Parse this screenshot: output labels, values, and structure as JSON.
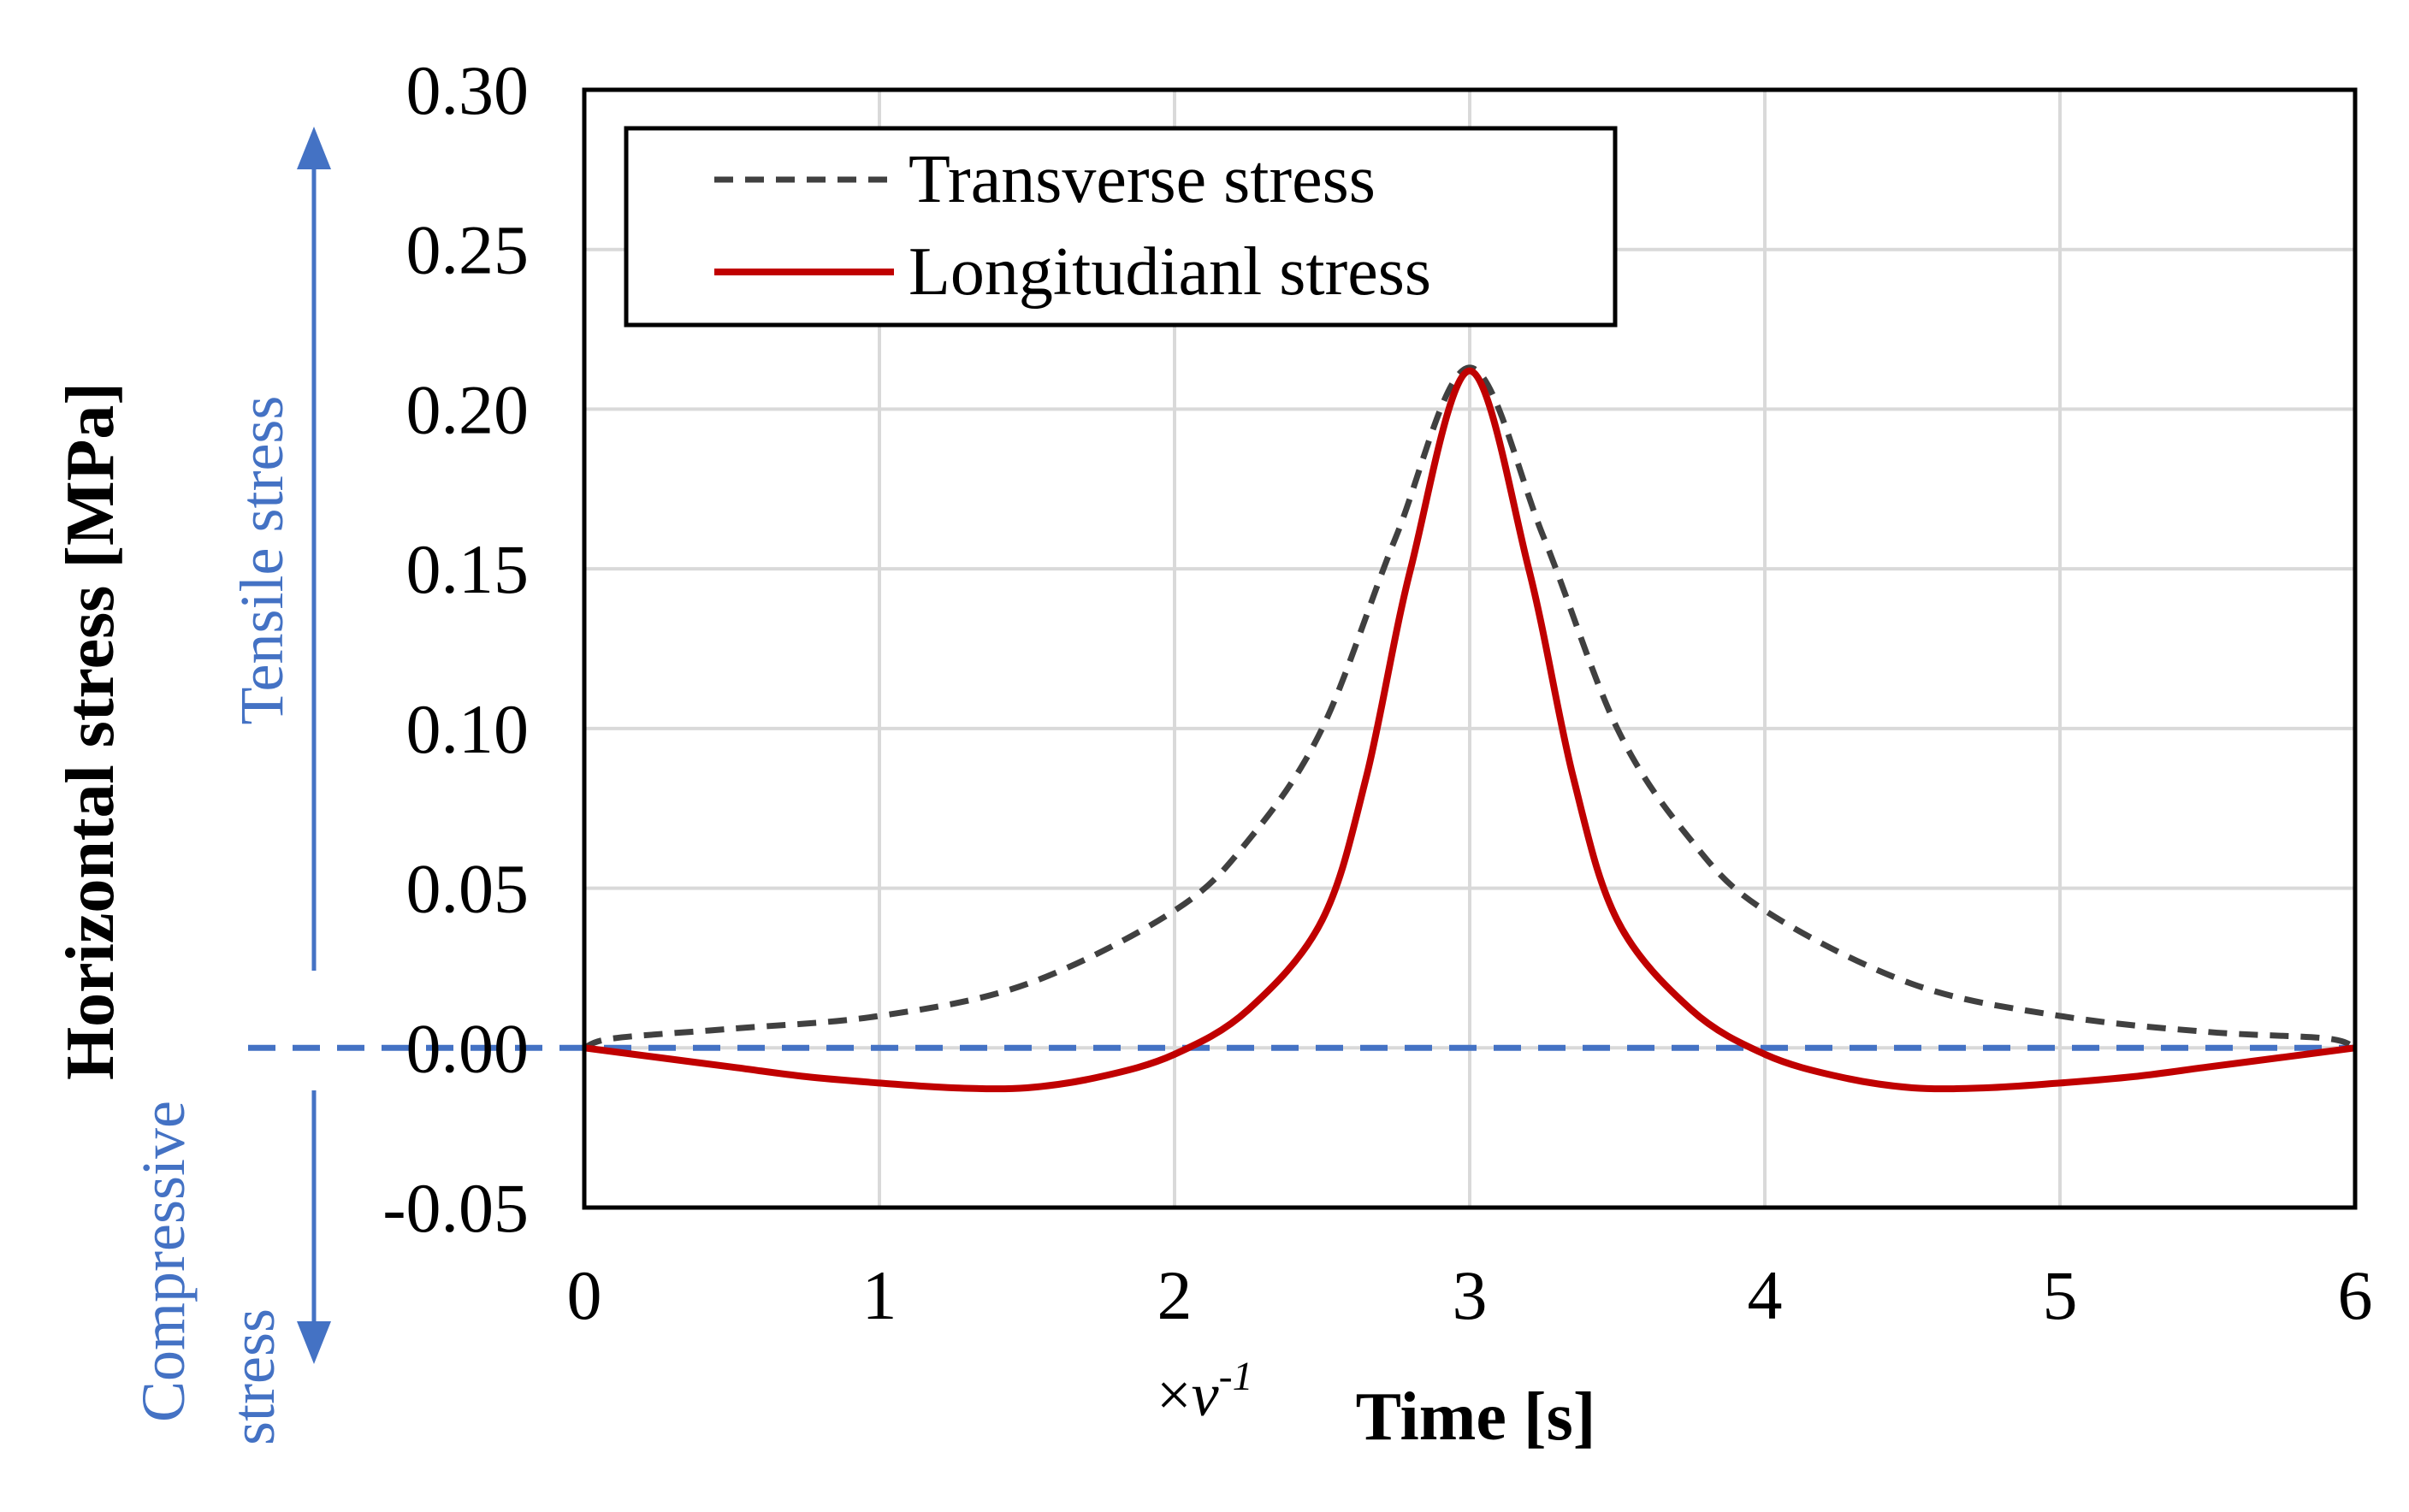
{
  "chart_data": {
    "type": "line",
    "title": "",
    "xlabel": "Time [s]",
    "x_multiplier": {
      "prefix": "×",
      "var": "v",
      "exponent": "-1"
    },
    "ylabel": "Horizontal  stress [MPa]",
    "xlim": [
      0,
      6
    ],
    "ylim": [
      -0.05,
      0.3
    ],
    "x_ticks": [
      0,
      1,
      2,
      3,
      4,
      5,
      6
    ],
    "x_tick_labels": [
      "0",
      "1",
      "2",
      "3",
      "4",
      "5",
      "6"
    ],
    "y_ticks": [
      -0.05,
      0.0,
      0.05,
      0.1,
      0.15,
      0.2,
      0.25,
      0.3
    ],
    "y_tick_labels": [
      "-0.05",
      "0.00",
      "0.05",
      "0.10",
      "0.15",
      "0.20",
      "0.25",
      "0.30"
    ],
    "grid": true,
    "legend_position": "top-left",
    "series": [
      {
        "name": "Transverse stress",
        "color": "#404040",
        "dash": "dashed",
        "x": [
          0,
          0.1,
          0.5,
          1.0,
          1.5,
          2.0,
          2.25,
          2.5,
          2.75,
          3.0,
          3.25,
          3.5,
          3.75,
          4.0,
          4.5,
          5.0,
          5.5,
          5.9,
          6.0
        ],
        "y": [
          0.0,
          0.003,
          0.006,
          0.01,
          0.02,
          0.043,
          0.065,
          0.1,
          0.16,
          0.213,
          0.16,
          0.1,
          0.065,
          0.043,
          0.02,
          0.01,
          0.005,
          0.003,
          0.0
        ]
      },
      {
        "name": "Longitudianl stress",
        "color": "#c00000",
        "dash": "solid",
        "x": [
          0,
          0.25,
          0.5,
          0.75,
          1.0,
          1.25,
          1.5,
          1.75,
          2.0,
          2.25,
          2.5,
          2.65,
          2.8,
          3.0,
          3.2,
          3.35,
          3.5,
          3.75,
          4.0,
          4.25,
          4.5,
          4.75,
          5.0,
          5.25,
          5.5,
          5.75,
          6.0
        ],
        "y": [
          0.0,
          -0.003,
          -0.006,
          -0.009,
          -0.011,
          -0.0125,
          -0.0125,
          -0.009,
          -0.002,
          0.012,
          0.04,
          0.085,
          0.15,
          0.212,
          0.15,
          0.085,
          0.04,
          0.012,
          -0.002,
          -0.009,
          -0.0125,
          -0.0125,
          -0.011,
          -0.009,
          -0.006,
          -0.003,
          0.0
        ]
      }
    ],
    "zero_line": {
      "y": 0.0,
      "color": "#4472c4",
      "dash": "dashed"
    },
    "annotations": {
      "tensile": "Tensile stress",
      "compressive_line1": "Compressive",
      "compressive_line2": "stress",
      "arrow_color": "#4472c4"
    }
  }
}
